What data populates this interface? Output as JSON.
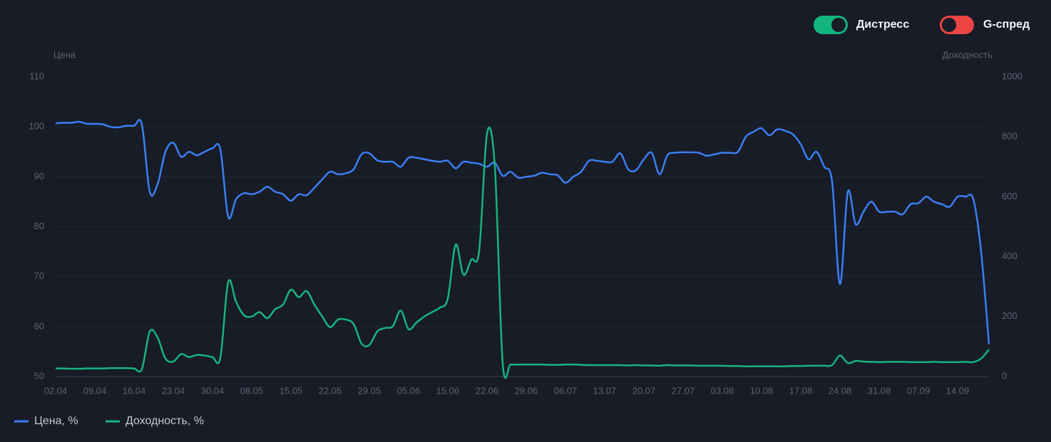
{
  "toggles": [
    "Дистресс",
    "G-спред"
  ],
  "chart_data": {
    "type": "line",
    "ylabel": "Цена",
    "y2label": "Доходность",
    "categories": [
      "02.04",
      null,
      null,
      null,
      null,
      "09.04",
      null,
      null,
      null,
      null,
      "16.04",
      null,
      null,
      null,
      null,
      "23.04",
      null,
      null,
      null,
      null,
      "30.04",
      null,
      null,
      null,
      null,
      "08.05",
      null,
      null,
      null,
      null,
      "15.05",
      null,
      null,
      null,
      null,
      "22.05",
      null,
      null,
      null,
      null,
      "29.05",
      null,
      null,
      null,
      null,
      "05.06",
      null,
      null,
      null,
      null,
      "15.06",
      null,
      null,
      null,
      null,
      "22.06",
      null,
      null,
      null,
      null,
      "29.06",
      null,
      null,
      null,
      null,
      "06.07",
      null,
      null,
      null,
      null,
      "13.07",
      null,
      null,
      null,
      null,
      "20.07",
      null,
      null,
      null,
      null,
      "27.07",
      null,
      null,
      null,
      null,
      "03.08",
      null,
      null,
      null,
      null,
      "10.08",
      null,
      null,
      null,
      null,
      "17.08",
      null,
      null,
      null,
      null,
      "24.08",
      null,
      null,
      null,
      null,
      "31.08",
      null,
      null,
      null,
      null,
      "07.09",
      null,
      null,
      null,
      null,
      "14.09",
      null,
      null,
      null,
      null
    ],
    "series": [
      {
        "name": "Цена, %",
        "color": "#3d7ef2",
        "values": [
          100.7,
          100.8,
          100.8,
          101,
          100.6,
          100.6,
          100.5,
          100,
          99.9,
          100.2,
          100.2,
          100.5,
          87,
          88.5,
          95,
          96.8,
          94,
          95,
          94.3,
          95,
          95.7,
          95.5,
          82,
          85.5,
          86.7,
          86.5,
          87,
          88,
          87,
          86.5,
          85.2,
          86.5,
          86.3,
          87.8,
          89.5,
          91,
          90.5,
          90.7,
          91.5,
          94.5,
          94.7,
          93.3,
          93,
          93,
          92,
          93.8,
          93.8,
          93.5,
          93.2,
          93,
          93.2,
          91.7,
          93,
          92.8,
          92.6,
          92,
          92.8,
          90.2,
          91,
          89.8,
          90,
          90.2,
          90.8,
          90.5,
          90.3,
          88.8,
          90,
          91,
          93.2,
          93.2,
          93,
          93,
          94.7,
          91.5,
          91.3,
          93.5,
          94.8,
          90.5,
          94.3,
          94.8,
          94.9,
          94.9,
          94.8,
          94.2,
          94.5,
          94.8,
          94.8,
          95,
          98,
          99,
          99.7,
          98.3,
          99.5,
          99.2,
          98.5,
          96.5,
          93.5,
          95,
          92,
          89,
          68.5,
          87,
          80.5,
          83,
          85,
          83,
          83,
          83,
          82.5,
          84.5,
          84.7,
          86,
          85,
          84.5,
          84,
          86,
          86,
          85.5,
          75,
          56.5
        ]
      },
      {
        "name": "Доходность, %",
        "color": "#17b47f",
        "axis": "y2",
        "values": [
          27,
          27,
          26,
          26,
          27,
          27,
          27,
          28,
          28,
          28,
          27,
          25,
          150,
          130,
          60,
          50,
          75,
          65,
          72,
          70,
          65,
          62,
          315,
          250,
          205,
          200,
          215,
          195,
          225,
          240,
          290,
          265,
          285,
          240,
          200,
          165,
          190,
          190,
          175,
          110,
          105,
          150,
          162,
          168,
          220,
          158,
          180,
          200,
          215,
          230,
          260,
          440,
          340,
          390,
          420,
          810,
          700,
          45,
          40,
          40,
          40,
          40,
          40,
          39,
          39,
          40,
          40,
          39,
          38,
          38,
          38,
          38,
          38,
          37,
          38,
          37,
          37,
          36,
          38,
          37,
          37,
          37,
          36,
          36,
          36,
          36,
          35,
          35,
          34,
          34,
          34,
          34,
          34,
          34,
          35,
          35,
          36,
          36,
          36,
          38,
          70,
          45,
          52,
          50,
          49,
          48,
          49,
          49,
          49,
          48,
          48,
          48,
          49,
          48,
          48,
          48,
          49,
          48,
          60,
          90
        ]
      }
    ],
    "ylim": [
      50,
      110
    ],
    "yticks": [
      50,
      60,
      70,
      80,
      90,
      100,
      110
    ],
    "y2lim": [
      0,
      1000
    ],
    "y2ticks": [
      0,
      200,
      400,
      600,
      800,
      1000
    ],
    "grid": true
  }
}
